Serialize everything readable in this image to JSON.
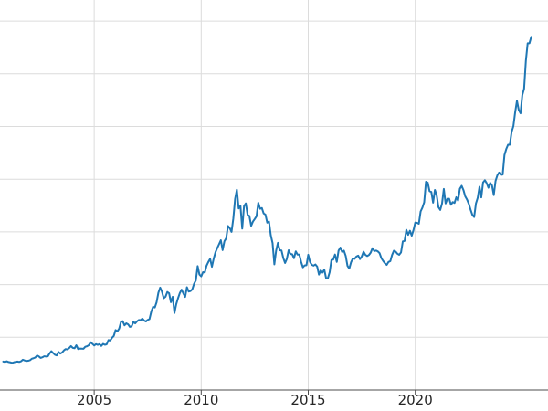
{
  "figure": {
    "background_color": "#ffffff",
    "line_color": "#1f77b4",
    "grid_color": "#dcdcdc",
    "axis_color": "#4d4d4d",
    "tick_label_color": "#262626"
  },
  "chart_data": {
    "type": "line",
    "title": "",
    "subtitle": "",
    "xlabel": "",
    "ylabel": "",
    "legend": null,
    "grid": true,
    "xlim": [
      2000.6,
      2026.2
    ],
    "ylim": [
      0,
      3700
    ],
    "x_tick_positions": [
      2005,
      2010,
      2015,
      2020
    ],
    "x_tick_labels": [
      "2005",
      "2010",
      "2015",
      "2020"
    ],
    "y_gridline_values": [
      500,
      1000,
      1500,
      2000,
      2500,
      3000,
      3500
    ],
    "x_start": 2000.75,
    "x_step": 0.0833333,
    "series": [
      {
        "name": "",
        "values": [
          270,
          266,
          272,
          265,
          262,
          257,
          263,
          267,
          270,
          266,
          272,
          287,
          280,
          275,
          277,
          282,
          296,
          301,
          308,
          327,
          318,
          304,
          310,
          320,
          317,
          319,
          347,
          368,
          350,
          334,
          328,
          361,
          346,
          355,
          375,
          388,
          385,
          398,
          416,
          400,
          396,
          424,
          388,
          393,
          392,
          391,
          410,
          415,
          425,
          453,
          438,
          422,
          435,
          428,
          435,
          418,
          437,
          429,
          433,
          473,
          470,
          495,
          513,
          568,
          556,
          582,
          644,
          653,
          613,
          632,
          623,
          599,
          604,
          647,
          632,
          651,
          664,
          663,
          677,
          659,
          650,
          665,
          672,
          743,
          789,
          783,
          833,
          923,
          971,
          933,
          871,
          885,
          930,
          918,
          833,
          884,
          730,
          814,
          870,
          919,
          952,
          916,
          883,
          975,
          934,
          939,
          955,
          1008,
          1040,
          1175,
          1096,
          1078,
          1118,
          1115,
          1179,
          1215,
          1244,
          1169,
          1246,
          1307,
          1346,
          1383,
          1421,
          1327,
          1411,
          1439,
          1556,
          1536,
          1500,
          1628,
          1813,
          1900,
          1722,
          1746,
          1531,
          1744,
          1770,
          1662,
          1651,
          1558,
          1598,
          1622,
          1648,
          1776,
          1719,
          1726,
          1675,
          1664,
          1588,
          1598,
          1469,
          1394,
          1192,
          1323,
          1396,
          1326,
          1324,
          1253,
          1205,
          1244,
          1326,
          1291,
          1288,
          1250,
          1315,
          1285,
          1285,
          1216,
          1164,
          1182,
          1184,
          1283,
          1214,
          1187,
          1180,
          1191,
          1171,
          1095,
          1135,
          1114,
          1142,
          1061,
          1060,
          1118,
          1234,
          1237,
          1285,
          1215,
          1322,
          1351,
          1309,
          1322,
          1272,
          1178,
          1152,
          1212,
          1248,
          1244,
          1266,
          1275,
          1242,
          1267,
          1311,
          1283,
          1271,
          1280,
          1303,
          1345,
          1318,
          1323,
          1315,
          1298,
          1250,
          1224,
          1202,
          1187,
          1215,
          1222,
          1282,
          1321,
          1313,
          1292,
          1283,
          1305,
          1409,
          1414,
          1520,
          1472,
          1511,
          1464,
          1517,
          1589,
          1586,
          1577,
          1694,
          1730,
          1781,
          1976,
          1967,
          1886,
          1879,
          1777,
          1898,
          1848,
          1734,
          1708,
          1769,
          1907,
          1770,
          1814,
          1814,
          1757,
          1783,
          1775,
          1829,
          1797,
          1909,
          1937,
          1897,
          1837,
          1807,
          1766,
          1711,
          1661,
          1641,
          1769,
          1824,
          1928,
          1827,
          1969,
          1990,
          1963,
          1919,
          1965,
          1940,
          1849,
          1984,
          2036,
          2063,
          2040,
          2044,
          2230,
          2286,
          2327,
          2327,
          2448,
          2503,
          2635,
          2744,
          2657,
          2625,
          2798,
          2858,
          3124,
          3289,
          3290,
          3350
        ]
      }
    ]
  }
}
